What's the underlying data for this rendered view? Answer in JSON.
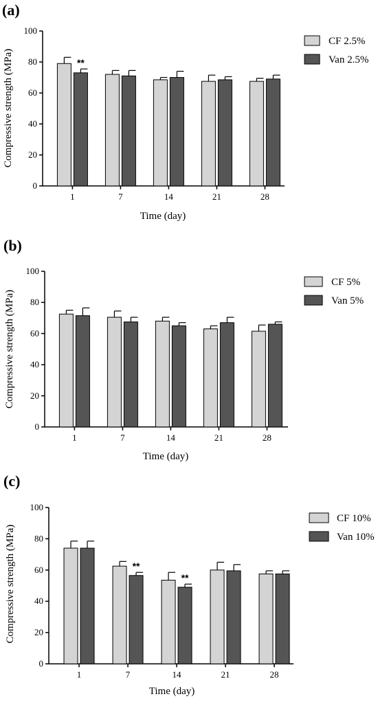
{
  "colors": {
    "CF": "#d4d4d4",
    "Van": "#555555",
    "axis": "#000000"
  },
  "chart_data": [
    {
      "type": "bar",
      "panel_label": "(a)",
      "categories": [
        "1",
        "7",
        "14",
        "21",
        "28"
      ],
      "series": [
        {
          "name": "CF 2.5%",
          "values": [
            79,
            72,
            68.5,
            67.5,
            67.5
          ],
          "errors": [
            4,
            2.5,
            1.5,
            4,
            2
          ]
        },
        {
          "name": "Van 2.5%",
          "values": [
            73,
            71,
            70,
            68.5,
            69
          ],
          "errors": [
            2.5,
            3.5,
            4,
            2,
            2.5
          ]
        }
      ],
      "significance": [
        {
          "category": "1",
          "series": "Van 2.5%",
          "text": "**"
        }
      ],
      "xlabel": "Time (day)",
      "ylabel": "Compressive strength (MPa)",
      "ylim": [
        0,
        100
      ],
      "yticks": [
        "0",
        "20",
        "40",
        "60",
        "80",
        "100"
      ],
      "legend_position": "top-right",
      "grid": false
    },
    {
      "type": "bar",
      "panel_label": "(b)",
      "categories": [
        "1",
        "7",
        "14",
        "21",
        "28"
      ],
      "series": [
        {
          "name": "CF 5%",
          "values": [
            72.5,
            70.5,
            68,
            63,
            61.5
          ],
          "errors": [
            2.5,
            4,
            2.5,
            2,
            4
          ]
        },
        {
          "name": "Van 5%",
          "values": [
            71.5,
            67.5,
            65,
            67,
            66
          ],
          "errors": [
            5,
            3,
            2,
            3.5,
            1.5
          ]
        }
      ],
      "significance": [],
      "xlabel": "Time (day)",
      "ylabel": "Compressive strength (MPa)",
      "ylim": [
        0,
        100
      ],
      "yticks": [
        "0",
        "20",
        "40",
        "60",
        "80",
        "100"
      ],
      "legend_position": "top-right",
      "grid": false
    },
    {
      "type": "bar",
      "panel_label": "(c)",
      "categories": [
        "1",
        "7",
        "14",
        "21",
        "28"
      ],
      "series": [
        {
          "name": "CF 10%",
          "values": [
            74,
            62.5,
            53.5,
            60,
            57.5
          ],
          "errors": [
            4.5,
            3,
            5,
            5,
            2
          ]
        },
        {
          "name": "Van 10%",
          "values": [
            74,
            56.5,
            49,
            59.5,
            57.5
          ],
          "errors": [
            4.5,
            2,
            2,
            4,
            2
          ]
        }
      ],
      "significance": [
        {
          "category": "7",
          "series": "Van 10%",
          "text": "**"
        },
        {
          "category": "14",
          "series": "Van 10%",
          "text": "**"
        }
      ],
      "xlabel": "Time (day)",
      "ylabel": "Compressive strength (MPa)",
      "ylim": [
        0,
        100
      ],
      "yticks": [
        "0",
        "20",
        "40",
        "60",
        "80",
        "100"
      ],
      "legend_position": "top-right",
      "grid": false
    }
  ]
}
